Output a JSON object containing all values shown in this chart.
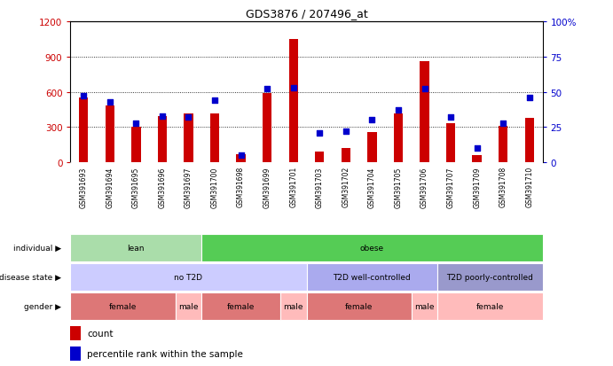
{
  "title": "GDS3876 / 207496_at",
  "samples": [
    "GSM391693",
    "GSM391694",
    "GSM391695",
    "GSM391696",
    "GSM391697",
    "GSM391700",
    "GSM391698",
    "GSM391699",
    "GSM391701",
    "GSM391703",
    "GSM391702",
    "GSM391704",
    "GSM391705",
    "GSM391706",
    "GSM391707",
    "GSM391709",
    "GSM391708",
    "GSM391710"
  ],
  "counts": [
    550,
    480,
    300,
    390,
    415,
    415,
    70,
    590,
    1050,
    90,
    120,
    260,
    415,
    860,
    330,
    65,
    310,
    380
  ],
  "percentiles": [
    47,
    43,
    28,
    33,
    32,
    44,
    5,
    52,
    53,
    21,
    22,
    30,
    37,
    52,
    32,
    10,
    28,
    46
  ],
  "bar_color": "#cc0000",
  "dot_color": "#0000cc",
  "individual_row": {
    "label": "individual",
    "segments": [
      {
        "text": "lean",
        "start": 0,
        "end": 4,
        "color": "#aaddaa"
      },
      {
        "text": "obese",
        "start": 5,
        "end": 17,
        "color": "#55cc55"
      }
    ]
  },
  "disease_row": {
    "label": "disease state",
    "segments": [
      {
        "text": "no T2D",
        "start": 0,
        "end": 8,
        "color": "#ccccff"
      },
      {
        "text": "T2D well-controlled",
        "start": 9,
        "end": 13,
        "color": "#aaaaee"
      },
      {
        "text": "T2D poorly-controlled",
        "start": 14,
        "end": 17,
        "color": "#9999cc"
      }
    ]
  },
  "gender_row": {
    "label": "gender",
    "segments": [
      {
        "text": "female",
        "start": 0,
        "end": 3,
        "color": "#dd7777"
      },
      {
        "text": "male",
        "start": 4,
        "end": 4,
        "color": "#ffbbbb"
      },
      {
        "text": "female",
        "start": 5,
        "end": 7,
        "color": "#dd7777"
      },
      {
        "text": "male",
        "start": 8,
        "end": 8,
        "color": "#ffbbbb"
      },
      {
        "text": "female",
        "start": 9,
        "end": 12,
        "color": "#dd7777"
      },
      {
        "text": "male",
        "start": 13,
        "end": 13,
        "color": "#ffbbbb"
      },
      {
        "text": "female",
        "start": 14,
        "end": 17,
        "color": "#ffbbbb"
      }
    ]
  }
}
